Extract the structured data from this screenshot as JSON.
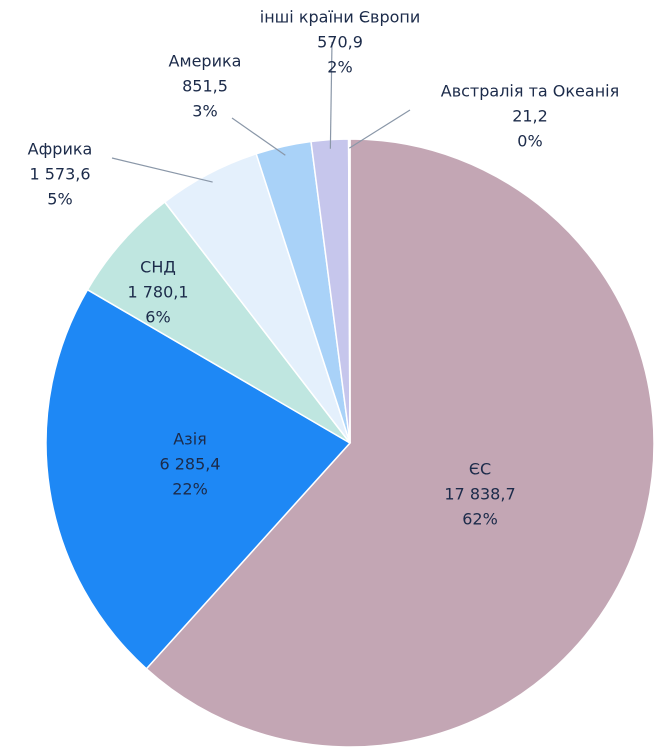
{
  "chart_data": {
    "type": "pie",
    "categories": [
      "ЄС",
      "Азія",
      "СНД",
      "Африка",
      "Америка",
      "інші країни Європи",
      "Австралія та Океанія"
    ],
    "values": [
      17838.7,
      6285.4,
      1780.1,
      1573.6,
      851.5,
      570.9,
      21.2
    ],
    "value_labels": [
      "17 838,7",
      "6 285,4",
      "1 780,1",
      "1 573,6",
      "851,5",
      "570,9",
      "21,2"
    ],
    "percentages": [
      62,
      22,
      6,
      5,
      3,
      2,
      0
    ],
    "percentage_labels": [
      "62%",
      "22%",
      "6%",
      "5%",
      "3%",
      "2%",
      "0%"
    ],
    "colors": [
      "#c3a6b4",
      "#1e88f5",
      "#bfe6e0",
      "#e4f0fc",
      "#a9d2f8",
      "#c6c6ec",
      "#dcd6ee"
    ]
  }
}
